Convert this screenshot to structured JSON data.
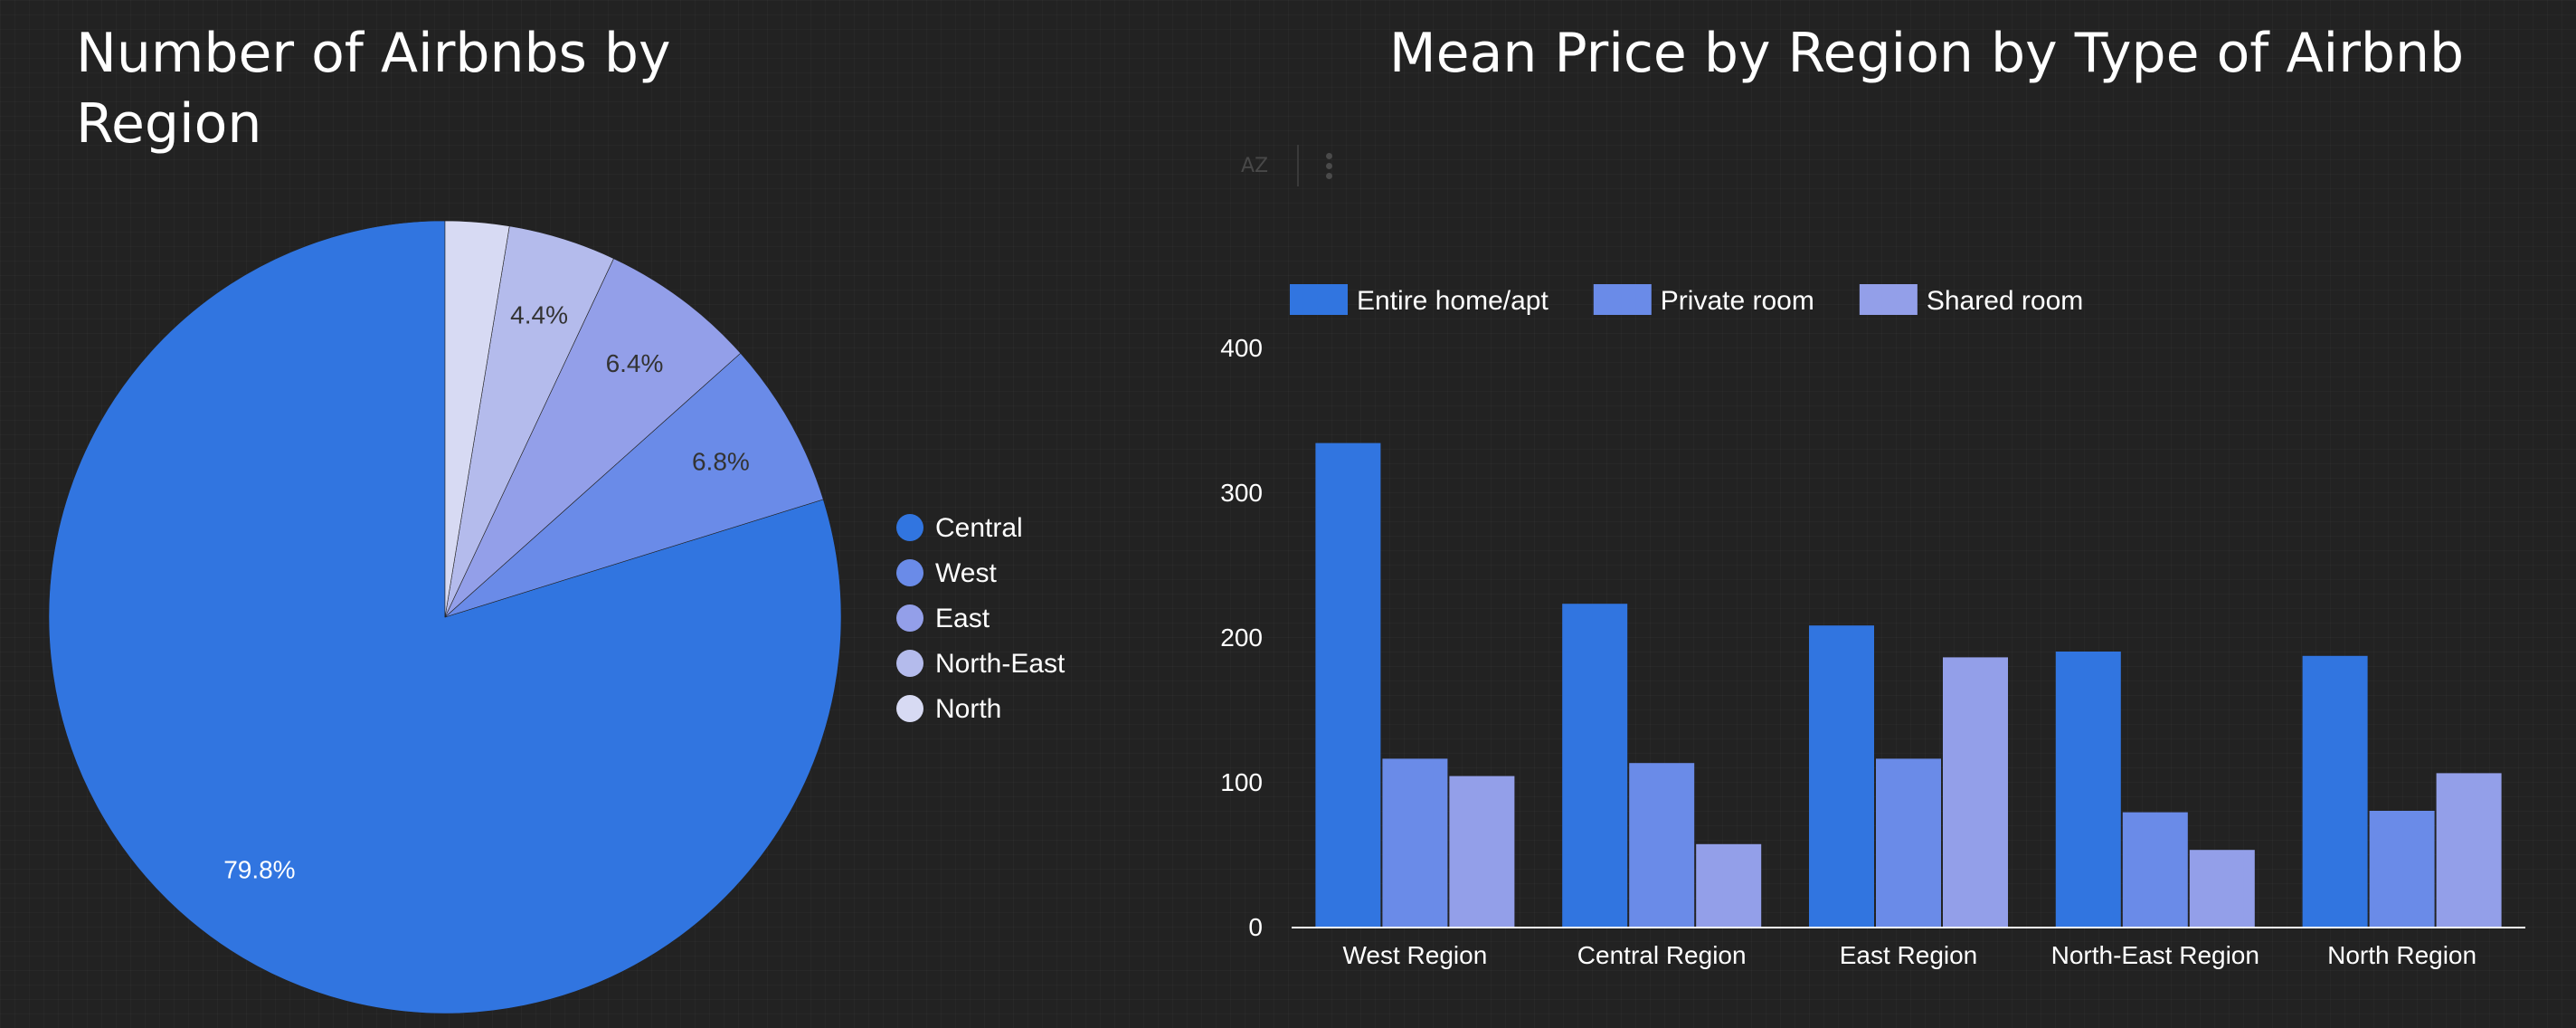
{
  "pie_section": {
    "title": "Number of Airbnbs by Region"
  },
  "bar_section": {
    "title": "Mean Price by Region by Type of Airbnb",
    "toolbar": {
      "sort_icon": "sort-az-icon",
      "sort_glyph": "AZ",
      "more_icon": "more-vert-icon"
    }
  },
  "colors": {
    "background": "#222222",
    "central": "#3175e0",
    "west": "#6a8be8",
    "east": "#939fe9",
    "north_east": "#b4bbec",
    "north": "#d7daf3",
    "entire_home": "#3175e0",
    "private_room": "#6a8be8",
    "shared_room": "#939fe9",
    "axis_text": "#ffffff"
  },
  "chart_data": [
    {
      "type": "pie",
      "title": "Number of Airbnbs by Region",
      "legend_position": "right",
      "slices": [
        {
          "label": "Central",
          "value": 79.8,
          "display": "79.8%",
          "color": "#3175e0"
        },
        {
          "label": "West",
          "value": 6.8,
          "display": "6.8%",
          "color": "#6a8be8"
        },
        {
          "label": "East",
          "value": 6.4,
          "display": "6.4%",
          "color": "#939fe9"
        },
        {
          "label": "North-East",
          "value": 4.4,
          "display": "4.4%",
          "color": "#b4bbec"
        },
        {
          "label": "North",
          "value": 2.6,
          "display": "",
          "color": "#d7daf3"
        }
      ]
    },
    {
      "type": "bar",
      "title": "Mean Price by Region by Type of Airbnb",
      "legend_position": "top-left",
      "categories": [
        "West Region",
        "Central Region",
        "East Region",
        "North-East Region",
        "North Region"
      ],
      "series": [
        {
          "name": "Entire home/apt",
          "color": "#3175e0",
          "values": [
            334,
            223,
            208,
            190,
            187
          ]
        },
        {
          "name": "Private room",
          "color": "#6a8be8",
          "values": [
            116,
            113,
            116,
            79,
            80
          ]
        },
        {
          "name": "Shared room",
          "color": "#939fe9",
          "values": [
            104,
            57,
            186,
            53,
            106
          ]
        }
      ],
      "ylim": [
        0,
        400
      ],
      "yticks": [
        0,
        100,
        200,
        300,
        400
      ],
      "xlabel": "",
      "ylabel": "",
      "grid": false
    }
  ]
}
